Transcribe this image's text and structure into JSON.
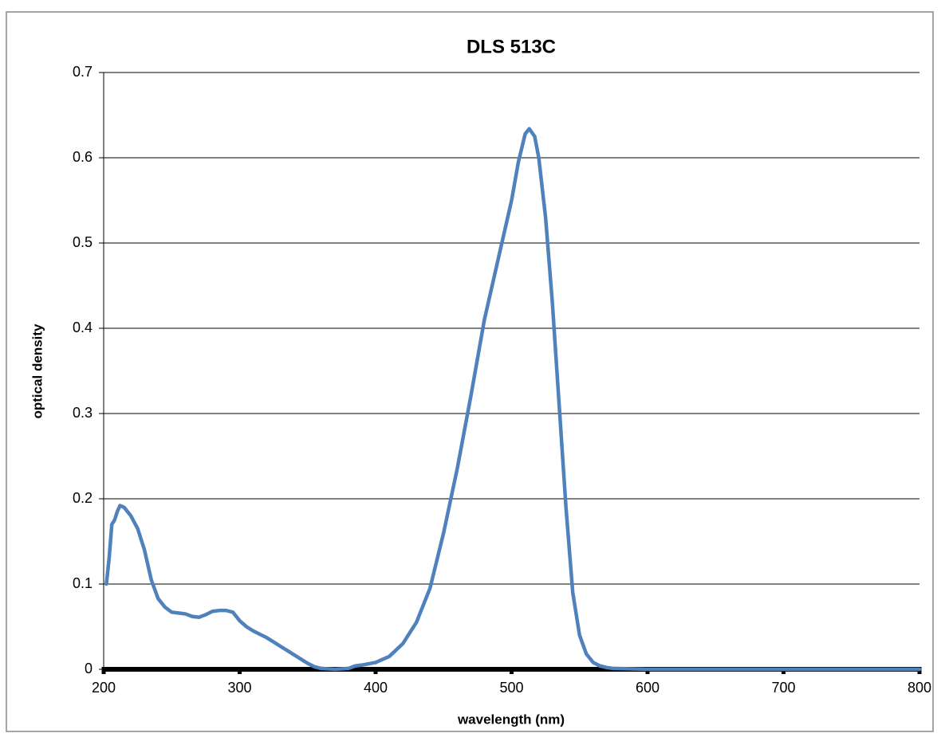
{
  "chart_data": {
    "type": "line",
    "title": "DLS 513C",
    "xlabel": "wavelength (nm)",
    "ylabel": "optical density",
    "xlim": [
      200,
      800
    ],
    "xticks": [
      200,
      300,
      400,
      500,
      600,
      700,
      800
    ],
    "ylim": [
      0,
      0.7
    ],
    "yticks": [
      0,
      0.1,
      0.2,
      0.3,
      0.4,
      0.5,
      0.6,
      0.7
    ],
    "grid": true,
    "x": [
      202,
      204,
      206,
      208,
      210,
      212,
      215,
      220,
      225,
      230,
      235,
      240,
      245,
      250,
      255,
      260,
      265,
      270,
      275,
      280,
      285,
      290,
      295,
      300,
      305,
      310,
      315,
      320,
      325,
      330,
      335,
      340,
      345,
      350,
      355,
      360,
      370,
      380,
      385,
      390,
      400,
      410,
      420,
      430,
      440,
      450,
      460,
      470,
      480,
      490,
      500,
      505,
      510,
      513,
      517,
      520,
      525,
      530,
      535,
      540,
      545,
      550,
      555,
      560,
      565,
      570,
      575,
      600,
      700,
      800
    ],
    "series": [
      {
        "color": "#4f81bd",
        "values": [
          0.1,
          0.13,
          0.17,
          0.175,
          0.185,
          0.192,
          0.19,
          0.18,
          0.165,
          0.14,
          0.105,
          0.083,
          0.073,
          0.067,
          0.066,
          0.065,
          0.062,
          0.061,
          0.064,
          0.068,
          0.069,
          0.069,
          0.067,
          0.057,
          0.05,
          0.045,
          0.041,
          0.037,
          0.032,
          0.027,
          0.022,
          0.017,
          0.012,
          0.007,
          0.003,
          0.001,
          0,
          0.001,
          0.004,
          0.005,
          0.008,
          0.015,
          0.03,
          0.055,
          0.095,
          0.16,
          0.235,
          0.32,
          0.41,
          0.48,
          0.55,
          0.595,
          0.628,
          0.634,
          0.625,
          0.6,
          0.53,
          0.43,
          0.31,
          0.19,
          0.09,
          0.04,
          0.018,
          0.008,
          0.004,
          0.002,
          0.001,
          0,
          0,
          0
        ]
      }
    ]
  }
}
